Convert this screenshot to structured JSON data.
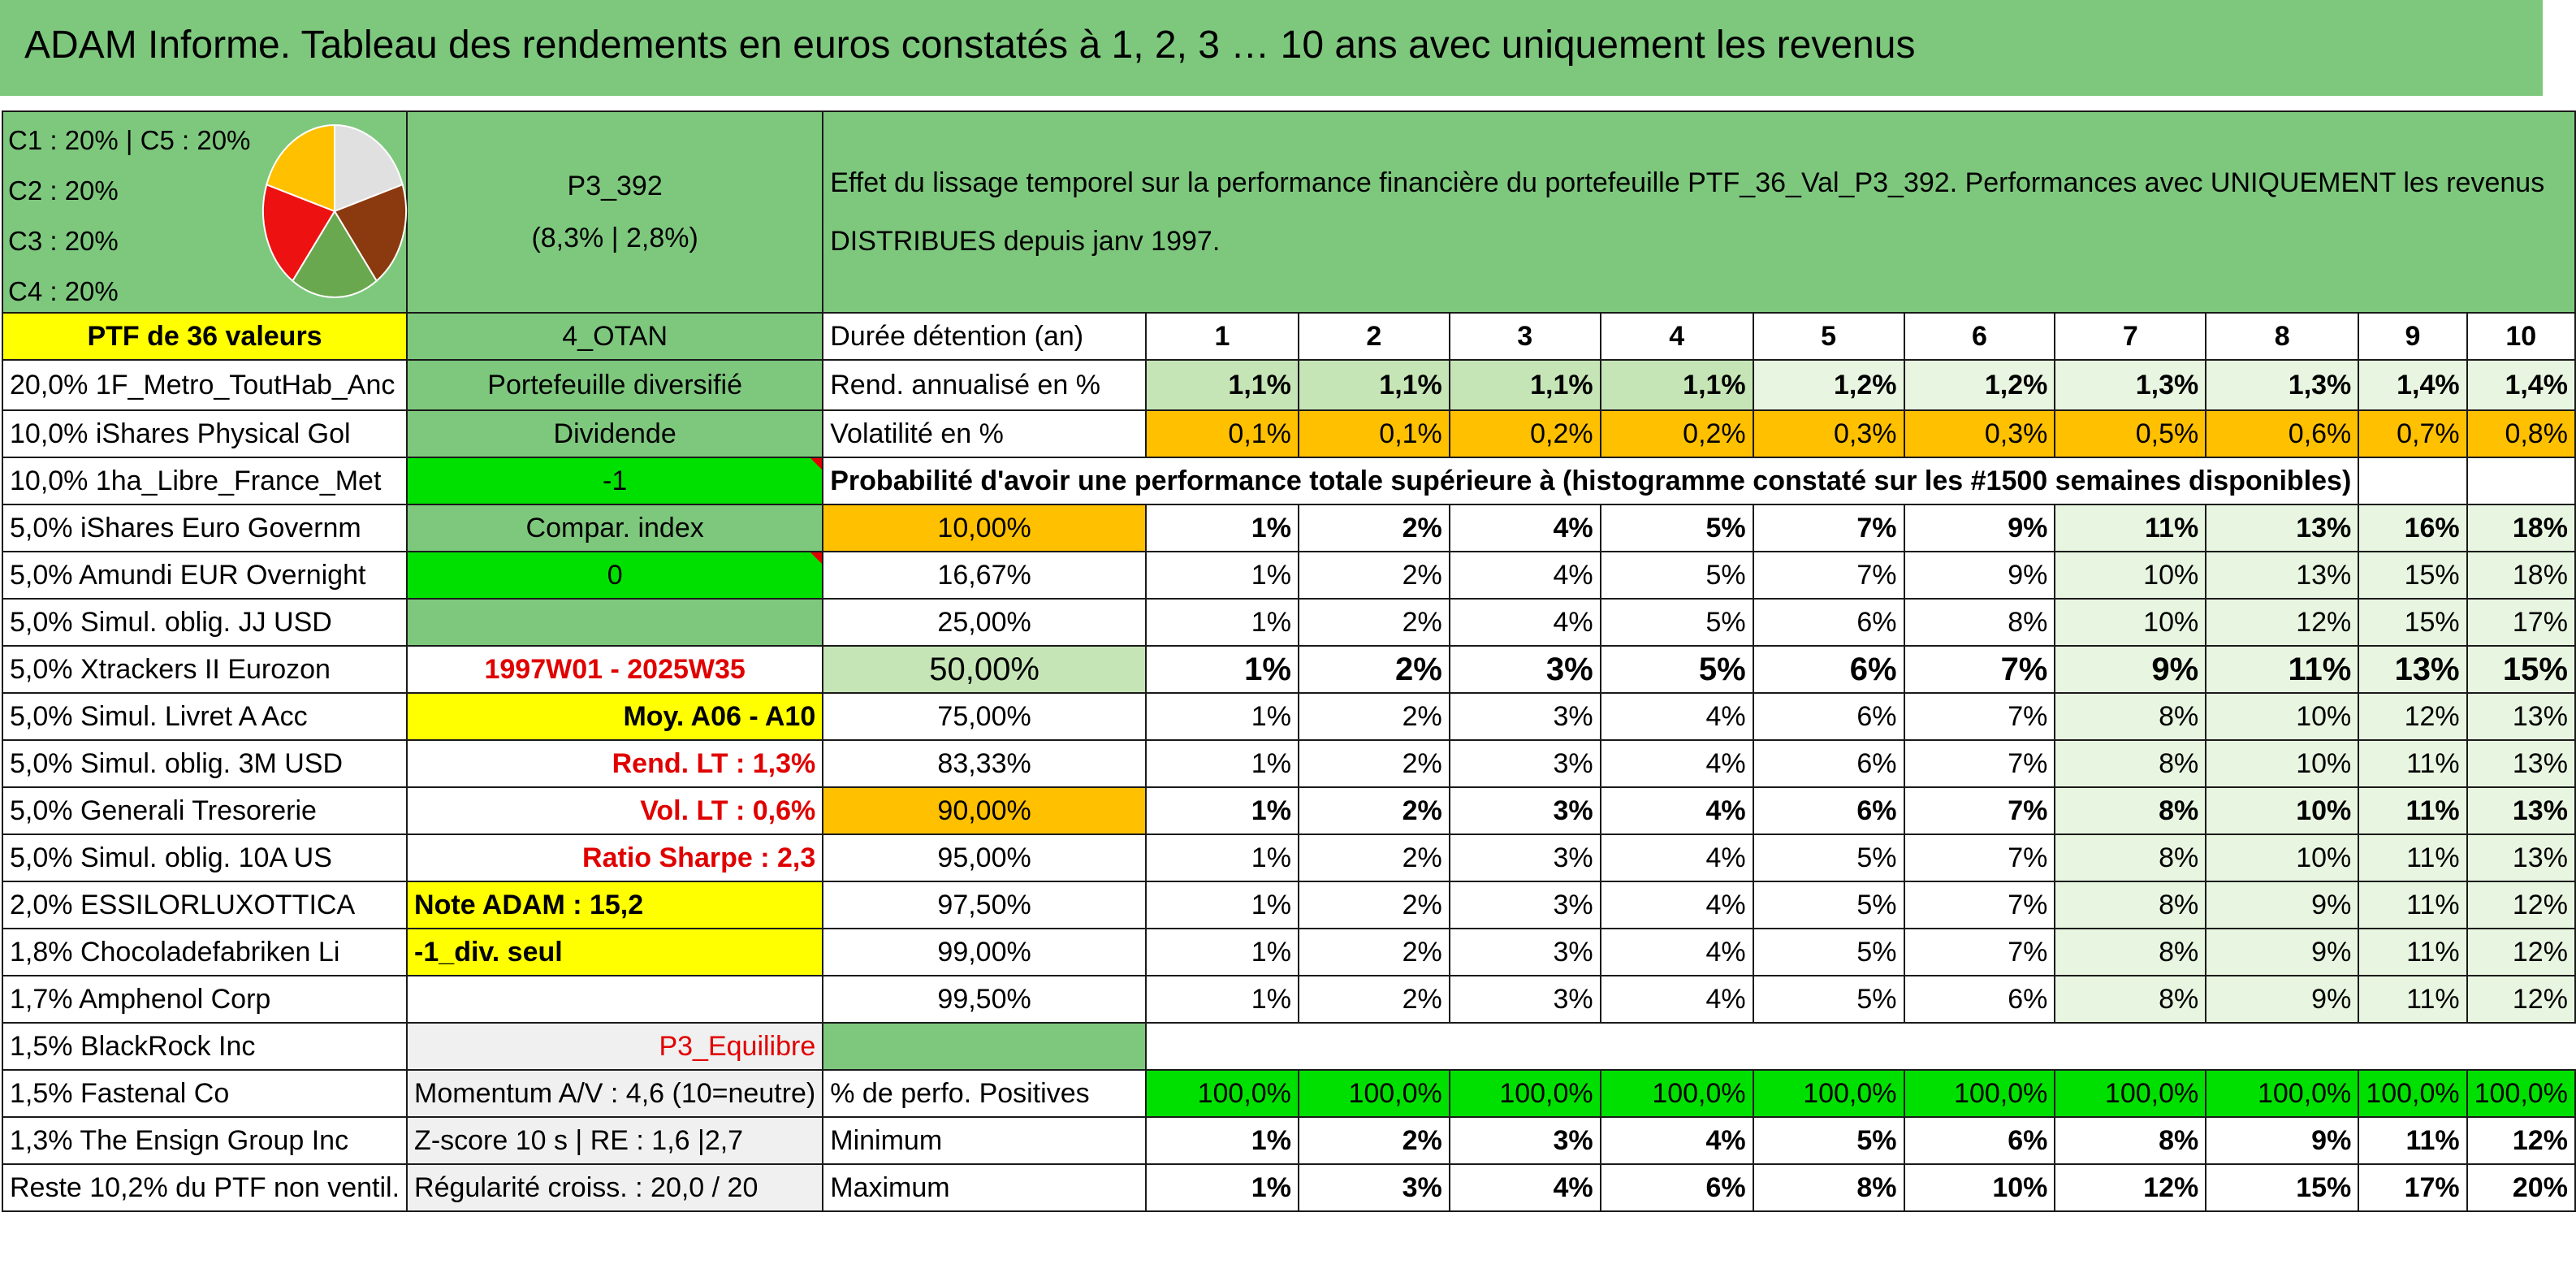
{
  "title": "ADAM Informe. Tableau des rendements en euros constatés à 1, 2, 3 … 10 ans avec uniquement les revenus",
  "pie": {
    "legend": [
      "C1 : 20% | C5 : 20%",
      "C2 : 20%",
      "C3 : 20%",
      "C4 : 20%"
    ],
    "slices": [
      {
        "name": "C1",
        "value": 20,
        "color": "#e0e0e0"
      },
      {
        "name": "C2",
        "value": 20,
        "color": "#8b3a0f"
      },
      {
        "name": "C3",
        "value": 20,
        "color": "#6aa84f"
      },
      {
        "name": "C4",
        "value": 20,
        "color": "#ee1111"
      },
      {
        "name": "C5",
        "value": 20,
        "color": "#ffc000"
      }
    ]
  },
  "portfolio": {
    "code": "P3_392",
    "stats": "(8,3% | 2,8%)",
    "count_label": "PTF de 36 valeurs",
    "group": "4_OTAN",
    "type": "Portefeuille diversifié",
    "income": "Dividende",
    "param": "-1",
    "compar_label": "Compar. index",
    "compar_value": "0",
    "period": "1997W01 - 2025W35",
    "avg_label": "Moy. A06 - A10",
    "rend_lt": "Rend. LT : 1,3%",
    "vol_lt": "Vol. LT : 0,6%",
    "sharpe": "Ratio Sharpe : 2,3",
    "note": "Note ADAM : 15,2",
    "div_only": "-1_div. seul",
    "profile": "P3_Equilibre",
    "momentum": "Momentum A/V : 4,6 (10=neutre)",
    "zscore": "Z-score 10 s | RE : 1,6 |2,7",
    "regularity": "Régularité croiss. : 20,0 / 20"
  },
  "description": "Effet du lissage temporel sur la performance financière du portefeuille PTF_36_Val_P3_392. Performances avec UNIQUEMENT les revenus DISTRIBUES depuis janv 1997.",
  "holdings": [
    "20,0% 1F_Metro_ToutHab_Anc",
    "10,0% iShares Physical Gol",
    "10,0% 1ha_Libre_France_Met",
    "5,0% iShares Euro Governm",
    "5,0% Amundi EUR Overnight",
    "5,0% Simul. oblig. JJ USD",
    "5,0% Xtrackers II Eurozon",
    "5,0% Simul. Livret A Acc",
    "5,0% Simul. oblig. 3M USD",
    "5,0% Generali Tresorerie",
    "5,0% Simul. oblig. 10A US",
    "2,0% ESSILORLUXOTTICA",
    "1,8% Chocoladefabriken Li",
    "1,7% Amphenol Corp",
    "1,5% BlackRock Inc",
    "1,5% Fastenal Co",
    "1,3% The Ensign Group Inc",
    "Reste 10,2% du PTF non ventil."
  ],
  "table": {
    "duration_label": "Durée détention (an)",
    "years": [
      "1",
      "2",
      "3",
      "4",
      "5",
      "6",
      "7",
      "8",
      "9",
      "10"
    ],
    "rend_label": "Rend. annualisé en %",
    "rend": [
      "1,1%",
      "1,1%",
      "1,1%",
      "1,1%",
      "1,2%",
      "1,2%",
      "1,3%",
      "1,3%",
      "1,4%",
      "1,4%"
    ],
    "vol_label": "Volatilité en %",
    "vol": [
      "0,1%",
      "0,1%",
      "0,2%",
      "0,2%",
      "0,3%",
      "0,3%",
      "0,5%",
      "0,6%",
      "0,7%",
      "0,8%"
    ],
    "prob_header": "Probabilité d'avoir une performance totale supérieure à (histogramme constaté sur les #1500 semaines disponibles)",
    "prob_rows": [
      {
        "p": "10,00%",
        "v": [
          "1%",
          "2%",
          "4%",
          "5%",
          "7%",
          "9%",
          "11%",
          "13%",
          "16%",
          "18%"
        ]
      },
      {
        "p": "16,67%",
        "v": [
          "1%",
          "2%",
          "4%",
          "5%",
          "7%",
          "9%",
          "10%",
          "13%",
          "15%",
          "18%"
        ]
      },
      {
        "p": "25,00%",
        "v": [
          "1%",
          "2%",
          "4%",
          "5%",
          "6%",
          "8%",
          "10%",
          "12%",
          "15%",
          "17%"
        ]
      },
      {
        "p": "50,00%",
        "v": [
          "1%",
          "2%",
          "3%",
          "5%",
          "6%",
          "7%",
          "9%",
          "11%",
          "13%",
          "15%"
        ]
      },
      {
        "p": "75,00%",
        "v": [
          "1%",
          "2%",
          "3%",
          "4%",
          "6%",
          "7%",
          "8%",
          "10%",
          "12%",
          "13%"
        ]
      },
      {
        "p": "83,33%",
        "v": [
          "1%",
          "2%",
          "3%",
          "4%",
          "6%",
          "7%",
          "8%",
          "10%",
          "11%",
          "13%"
        ]
      },
      {
        "p": "90,00%",
        "v": [
          "1%",
          "2%",
          "3%",
          "4%",
          "6%",
          "7%",
          "8%",
          "10%",
          "11%",
          "13%"
        ]
      },
      {
        "p": "95,00%",
        "v": [
          "1%",
          "2%",
          "3%",
          "4%",
          "5%",
          "7%",
          "8%",
          "10%",
          "11%",
          "13%"
        ]
      },
      {
        "p": "97,50%",
        "v": [
          "1%",
          "2%",
          "3%",
          "4%",
          "5%",
          "7%",
          "8%",
          "9%",
          "11%",
          "12%"
        ]
      },
      {
        "p": "99,00%",
        "v": [
          "1%",
          "2%",
          "3%",
          "4%",
          "5%",
          "7%",
          "8%",
          "9%",
          "11%",
          "12%"
        ]
      },
      {
        "p": "99,50%",
        "v": [
          "1%",
          "2%",
          "3%",
          "4%",
          "5%",
          "6%",
          "8%",
          "9%",
          "11%",
          "12%"
        ]
      }
    ],
    "pos_label": "% de perfo. Positives",
    "pos": [
      "100,0%",
      "100,0%",
      "100,0%",
      "100,0%",
      "100,0%",
      "100,0%",
      "100,0%",
      "100,0%",
      "100,0%",
      "100,0%"
    ],
    "min_label": "Minimum",
    "min": [
      "1%",
      "2%",
      "3%",
      "4%",
      "5%",
      "6%",
      "8%",
      "9%",
      "11%",
      "12%"
    ],
    "max_label": "Maximum",
    "max": [
      "1%",
      "3%",
      "4%",
      "6%",
      "8%",
      "10%",
      "12%",
      "15%",
      "17%",
      "20%"
    ]
  }
}
